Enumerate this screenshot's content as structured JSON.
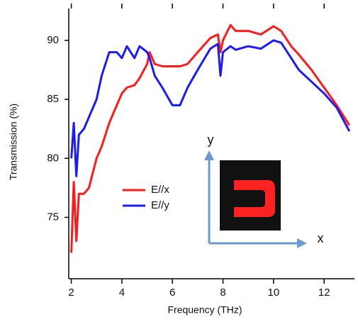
{
  "chart_data": {
    "type": "line",
    "x_label": "Frequency (THz)",
    "y_label": "Transmission (%)",
    "x": [
      2,
      2.1,
      2.2,
      2.3,
      2.5,
      2.7,
      3,
      3.2,
      3.5,
      3.8,
      4,
      4.2,
      4.5,
      4.7,
      5,
      5.1,
      5.3,
      5.6,
      6,
      6.3,
      6.6,
      7,
      7.5,
      7.8,
      7.9,
      8,
      8.3,
      8.5,
      9,
      9.5,
      10,
      10.3,
      10.7,
      11,
      11.5,
      12,
      12.5,
      13
    ],
    "series": [
      {
        "name": "E//x",
        "color": "#ff1a1a",
        "values": [
          72,
          78,
          73,
          77,
          77,
          77.5,
          80,
          81,
          83,
          84.5,
          85.5,
          86,
          86.2,
          86.8,
          88,
          89,
          88,
          87.8,
          87.8,
          87.8,
          88,
          89,
          90.2,
          90.5,
          89,
          90,
          91.3,
          90.8,
          90.8,
          90.5,
          91.2,
          90.8,
          89.5,
          88.8,
          87.5,
          86,
          84.5,
          82.8
        ]
      },
      {
        "name": "E//y",
        "color": "#1a1aff",
        "values": [
          80,
          83,
          78.5,
          82,
          82.5,
          83.5,
          85,
          87,
          89,
          89,
          88.5,
          89.5,
          88.5,
          89.5,
          89,
          88.5,
          87,
          86,
          84.5,
          84.5,
          86,
          87.5,
          89.3,
          89.7,
          87,
          89,
          89.5,
          89.2,
          89.5,
          89.3,
          90,
          89.8,
          88.5,
          87.5,
          86.5,
          85.5,
          84.3,
          82.3
        ]
      }
    ],
    "xlim": [
      1.9,
      13.2
    ],
    "ylim": [
      69.8,
      92.7
    ],
    "xticks": [
      2,
      4,
      6,
      8,
      10,
      12
    ],
    "yticks": [
      75,
      80,
      85,
      90
    ],
    "inset_axis_labels": [
      "y",
      "x"
    ]
  }
}
